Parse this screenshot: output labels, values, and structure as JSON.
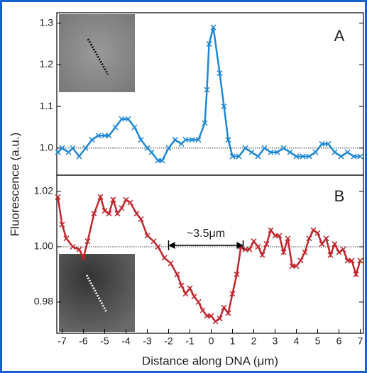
{
  "chart_data": [
    {
      "type": "line",
      "panel_label": "A",
      "ylabel": "Fluorescence (a.u.)",
      "x": [
        -7.2,
        -7.0,
        -6.7,
        -6.5,
        -6.2,
        -5.9,
        -5.6,
        -5.3,
        -5.0,
        -4.8,
        -4.5,
        -4.2,
        -3.9,
        -3.6,
        -3.3,
        -3.0,
        -2.8,
        -2.5,
        -2.3,
        -2.0,
        -1.7,
        -1.4,
        -1.2,
        -0.9,
        -0.6,
        -0.3,
        -0.2,
        -0.1,
        0.1,
        0.4,
        0.6,
        0.8,
        1.0,
        1.3,
        1.6,
        1.9,
        2.2,
        2.5,
        2.8,
        3.1,
        3.4,
        3.7,
        4.0,
        4.3,
        4.6,
        4.9,
        5.2,
        5.5,
        5.8,
        6.1,
        6.4,
        6.7,
        7.0
      ],
      "series": [
        {
          "name": "A",
          "color": "#1e88d4",
          "values": [
            0.99,
            1.0,
            0.99,
            1.0,
            0.98,
            1.0,
            1.02,
            1.03,
            1.03,
            1.03,
            1.05,
            1.07,
            1.07,
            1.05,
            1.02,
            1.0,
            0.99,
            0.97,
            0.97,
            1.0,
            1.02,
            1.01,
            1.02,
            1.02,
            1.02,
            1.06,
            1.14,
            1.25,
            1.29,
            1.18,
            1.1,
            1.02,
            0.98,
            0.98,
            1.0,
            0.99,
            0.98,
            1.0,
            0.99,
            0.99,
            1.0,
            0.99,
            0.98,
            0.98,
            0.98,
            0.99,
            1.01,
            1.01,
            0.99,
            0.98,
            0.99,
            0.98,
            0.98
          ]
        }
      ],
      "refline": 1,
      "xlim": [
        -7.25,
        7.15
      ],
      "ylim": [
        0.935,
        1.325
      ],
      "yticks": [
        {
          "value": 1,
          "label": "1.0"
        },
        1.1,
        1.2,
        1.3
      ]
    },
    {
      "type": "line",
      "panel_label": "B",
      "xlabel": "Distance along DNA (μm)",
      "x": [
        -7.2,
        -7.0,
        -6.8,
        -6.5,
        -6.2,
        -6.0,
        -5.8,
        -5.5,
        -5.2,
        -5.0,
        -4.8,
        -4.6,
        -4.4,
        -4.2,
        -4.0,
        -3.8,
        -3.5,
        -3.3,
        -3.0,
        -2.7,
        -2.5,
        -2.2,
        -1.9,
        -1.6,
        -1.4,
        -1.2,
        -1.0,
        -0.8,
        -0.6,
        -0.4,
        -0.2,
        0.0,
        0.2,
        0.4,
        0.6,
        0.8,
        1.0,
        1.2,
        1.4,
        1.6,
        1.8,
        2.0,
        2.2,
        2.4,
        2.6,
        2.8,
        3.0,
        3.2,
        3.4,
        3.6,
        3.8,
        4.0,
        4.2,
        4.4,
        4.6,
        4.8,
        5.0,
        5.2,
        5.4,
        5.6,
        5.8,
        6.0,
        6.2,
        6.4,
        6.6,
        6.8,
        7.0
      ],
      "series": [
        {
          "name": "B",
          "color": "#c0272d",
          "values": [
            1.018,
            1.008,
            1.003,
            1.0,
            0.999,
            0.996,
            1.002,
            1.012,
            1.018,
            1.013,
            1.012,
            1.017,
            1.012,
            1.014,
            1.017,
            1.016,
            1.012,
            1.01,
            1.004,
            1.002,
            1.0,
            0.996,
            0.994,
            0.99,
            0.986,
            0.983,
            0.985,
            0.982,
            0.98,
            0.977,
            0.975,
            0.975,
            0.973,
            0.974,
            0.978,
            0.976,
            0.983,
            0.99,
            1.0,
            0.999,
            0.999,
            1.002,
            1.0,
            0.997,
            1.001,
            1.006,
            1.004,
            1.004,
            0.998,
            1.003,
            0.993,
            0.993,
            0.995,
            0.998,
            1.003,
            1.006,
            1.005,
            1.001,
            1.003,
            0.997,
            1.001,
            0.998,
            0.999,
            0.995,
            0.995,
            0.99,
            0.995
          ]
        }
      ],
      "refline": 1,
      "annotation": {
        "text": "~3.5μm",
        "x": [
          -2,
          1.5
        ]
      },
      "xlim": [
        -7.25,
        7.15
      ],
      "ylim": [
        0.9687,
        1.0259
      ],
      "xticks": [
        -7,
        -6,
        -5,
        -4,
        -3,
        -2,
        -1,
        0,
        1,
        2,
        3,
        4,
        5,
        6,
        7
      ],
      "yticks": [
        0.98,
        {
          "value": 1,
          "label": "1.00"
        },
        1.02
      ]
    }
  ]
}
